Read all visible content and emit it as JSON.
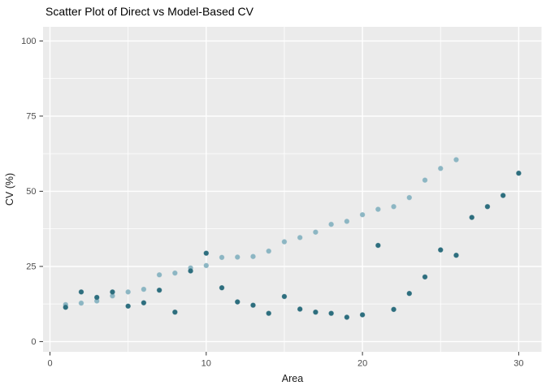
{
  "chart_data": {
    "type": "scatter",
    "title": "Scatter Plot of Direct vs Model-Based CV",
    "xlabel": "Area",
    "ylabel": "CV (%)",
    "xlim": [
      0,
      30
    ],
    "ylim": [
      0,
      100
    ],
    "x_ticks": [
      0,
      10,
      20,
      30
    ],
    "y_ticks": [
      0,
      25,
      50,
      75,
      100
    ],
    "x_minor_gridlines": [
      5,
      15,
      25
    ],
    "y_minor_gridlines": [
      12.5,
      37.5,
      62.5,
      87.5
    ],
    "grid": "on",
    "legend_position": "none",
    "panel_background_color": "#ebebeb",
    "gridline_color": "#ffffff",
    "tick_label_color": "#4d4d4d",
    "series": [
      {
        "name": "Model-Based CV",
        "color": "#8cb6c3",
        "x": [
          1,
          2,
          3,
          4,
          5,
          6,
          7,
          8,
          9,
          10,
          11,
          12,
          13,
          14,
          15,
          16,
          17,
          18,
          19,
          20,
          21,
          22,
          23,
          24,
          25,
          26
        ],
        "y": [
          12.3,
          12.8,
          13.5,
          15.2,
          16.5,
          17.4,
          22.2,
          22.8,
          24.5,
          25.3,
          28.0,
          28.1,
          28.3,
          30.1,
          33.2,
          34.6,
          36.4,
          39.0,
          40.0,
          42.2,
          44.0,
          44.9,
          47.9,
          53.7,
          57.6,
          60.5
        ]
      },
      {
        "name": "Direct CV",
        "color": "#2d6e7e",
        "x": [
          1,
          2,
          3,
          4,
          5,
          6,
          7,
          8,
          9,
          10,
          11,
          12,
          13,
          14,
          15,
          16,
          17,
          18,
          19,
          20,
          21,
          22,
          23,
          24,
          25,
          26,
          27,
          28,
          29,
          30
        ],
        "y": [
          11.4,
          16.5,
          14.7,
          16.5,
          11.8,
          12.9,
          17.1,
          9.8,
          23.5,
          29.4,
          17.9,
          13.2,
          12.1,
          9.4,
          15.0,
          10.8,
          9.8,
          9.4,
          8.1,
          8.9,
          32.0,
          10.7,
          16.0,
          21.5,
          30.5,
          28.7,
          41.3,
          44.9,
          48.6,
          56.0
        ]
      }
    ]
  }
}
